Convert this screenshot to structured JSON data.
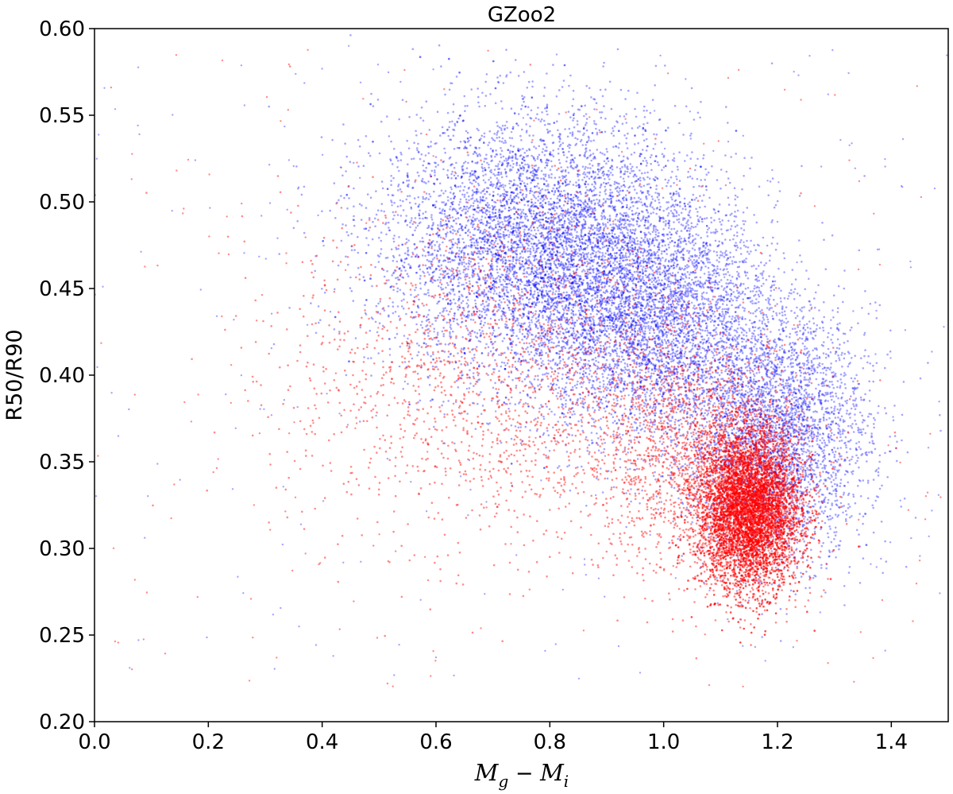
{
  "chart_data": {
    "type": "scatter",
    "title": "GZoo2",
    "xlabel": "M_g − M_i",
    "xlabel_parts": {
      "m1": "M",
      "sub1": "g",
      "op": " − ",
      "m2": "M",
      "sub2": "i"
    },
    "ylabel": "R50/R90",
    "xlim": [
      0.0,
      1.5
    ],
    "ylim": [
      0.2,
      0.6
    ],
    "x_ticks": [
      "0.0",
      "0.2",
      "0.4",
      "0.6",
      "0.8",
      "1.0",
      "1.2",
      "1.4"
    ],
    "y_ticks": [
      "0.20",
      "0.25",
      "0.30",
      "0.35",
      "0.40",
      "0.45",
      "0.50",
      "0.55",
      "0.60"
    ],
    "grid": false,
    "series": [
      {
        "color": "#0000ff",
        "point_count_approx": 60000,
        "distribution": "broad cloud from x≈0.45 to 1.45, densest ridge from (0.75, 0.47) down to (1.18, 0.36), extending up to y≈0.56 near x≈0.75",
        "clusters": [
          {
            "cx": 0.78,
            "cy": 0.475,
            "sx": 0.14,
            "sy": 0.038,
            "weight": 0.45
          },
          {
            "cx": 0.98,
            "cy": 0.43,
            "sx": 0.11,
            "sy": 0.035,
            "weight": 0.3
          },
          {
            "cx": 1.2,
            "cy": 0.365,
            "sx": 0.08,
            "sy": 0.035,
            "weight": 0.25
          }
        ]
      },
      {
        "color": "#ff0000",
        "point_count_approx": 50000,
        "distribution": "tight dense core centred near (1.15, 0.32) with a diffuse tail toward x≈0.4, y≈0.35–0.40",
        "clusters": [
          {
            "cx": 1.15,
            "cy": 0.322,
            "sx": 0.045,
            "sy": 0.023,
            "weight": 0.7
          },
          {
            "cx": 1.05,
            "cy": 0.355,
            "sx": 0.1,
            "sy": 0.035,
            "weight": 0.15
          },
          {
            "cx": 0.7,
            "cy": 0.4,
            "sx": 0.18,
            "sy": 0.05,
            "weight": 0.15
          }
        ]
      }
    ]
  }
}
